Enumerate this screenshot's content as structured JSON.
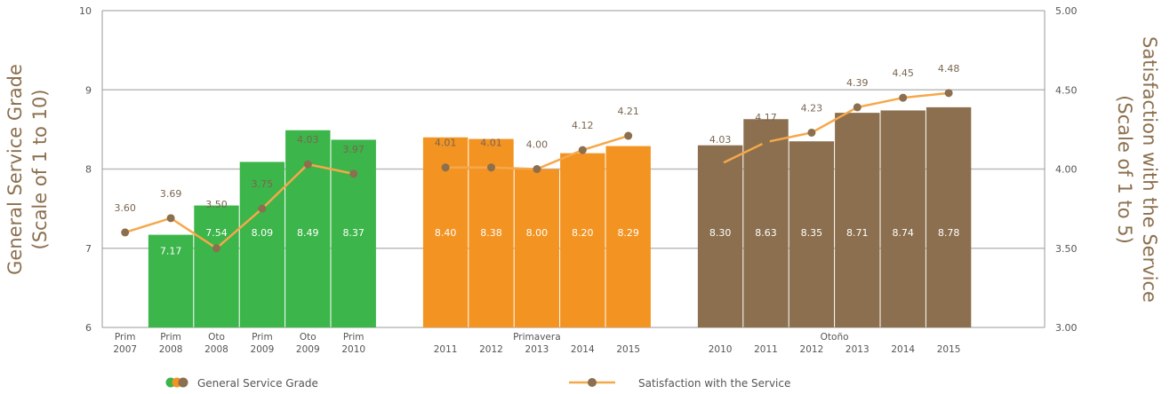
{
  "chart_data": {
    "type": "bar",
    "left_axis": {
      "label_line1": "General Service Grade",
      "label_line2": "(Scale of 1 to 10)",
      "ylim": [
        6,
        10
      ],
      "ticks": [
        "6",
        "7",
        "8",
        "9",
        "10"
      ]
    },
    "right_axis": {
      "label_line1": "Satisfaction with the Service",
      "label_line2": "(Scale of 1 to 5)",
      "ylim": [
        3.0,
        5.0
      ],
      "ticks": [
        "3.00",
        "3.50",
        "4.00",
        "4.50",
        "5.00"
      ]
    },
    "colors": {
      "green": "#3cb54a",
      "orange": "#f39322",
      "brown": "#8b6f4e",
      "line": "#f5a84a",
      "marker": "#8b6f4e",
      "grid": "#bbbbbb"
    },
    "groups": [
      {
        "name": "",
        "color": "green",
        "categories": [
          "Prim 2007",
          "Prim 2008",
          "Oto 2008",
          "Prim 2009",
          "Oto 2009",
          "Prim 2010"
        ],
        "cat_line1": [
          "Prim",
          "Prim",
          "Oto",
          "Prim",
          "Oto",
          "Prim"
        ],
        "cat_line2": [
          "2007",
          "2008",
          "2008",
          "2009",
          "2009",
          "2010"
        ],
        "grade": [
          null,
          7.17,
          7.54,
          8.09,
          8.49,
          8.37
        ],
        "grade_labels": [
          "",
          "7.17",
          "7.54",
          "8.09",
          "8.49",
          "8.37"
        ],
        "satisfaction": [
          3.6,
          3.69,
          3.5,
          3.75,
          4.03,
          3.97
        ],
        "satisfaction_labels": [
          "3.60",
          "3.69",
          "3.50",
          "3.75",
          "4.03",
          "3.97"
        ]
      },
      {
        "name": "Primavera",
        "color": "orange",
        "categories": [
          "2011",
          "2012",
          "2013",
          "2014",
          "2015"
        ],
        "cat_line1": [
          "",
          "",
          "",
          "",
          ""
        ],
        "cat_line2": [
          "2011",
          "2012",
          "2013",
          "2014",
          "2015"
        ],
        "grade": [
          8.4,
          8.38,
          8.0,
          8.2,
          8.29
        ],
        "grade_labels": [
          "8.40",
          "8.38",
          "8.00",
          "8.20",
          "8.29"
        ],
        "satisfaction": [
          4.01,
          4.01,
          4.0,
          4.12,
          4.21
        ],
        "satisfaction_labels": [
          "4.01",
          "4.01",
          "4.00",
          "4.12",
          "4.21"
        ]
      },
      {
        "name": "Otoño",
        "color": "brown",
        "categories": [
          "2010",
          "2011",
          "2012",
          "2013",
          "2014",
          "2015"
        ],
        "cat_line1": [
          "",
          "",
          "",
          "",
          "",
          ""
        ],
        "cat_line2": [
          "2010",
          "2011",
          "2012",
          "2013",
          "2014",
          "2015"
        ],
        "grade": [
          8.3,
          8.63,
          8.35,
          8.71,
          8.74,
          8.78
        ],
        "grade_labels": [
          "8.30",
          "8.63",
          "8.35",
          "8.71",
          "8.74",
          "8.78"
        ],
        "satisfaction": [
          4.03,
          4.17,
          4.23,
          4.39,
          4.45,
          4.48
        ],
        "satisfaction_labels": [
          "4.03",
          "4.17",
          "4.23",
          "4.39",
          "4.45",
          "4.48"
        ]
      }
    ],
    "legend": {
      "bars_label": "General Service Grade",
      "line_label": "Satisfaction with the Service"
    },
    "grid": true
  }
}
